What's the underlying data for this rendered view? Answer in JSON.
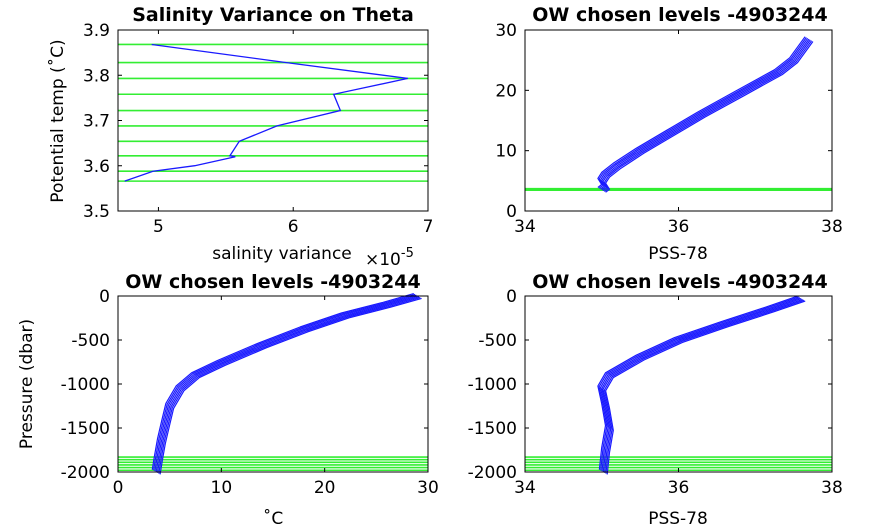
{
  "colors": {
    "profile": "#1a1aff",
    "level": "#33ee33",
    "axis": "#000000"
  },
  "chart_data": [
    {
      "id": "tl",
      "type": "line",
      "title": "Salinity Variance on Theta",
      "xlabel": "salinity variance",
      "ylabel": "Potential temp (˚C)",
      "xlim": [
        4.7,
        7.0
      ],
      "ylim": [
        3.5,
        3.9
      ],
      "xticks": [
        5,
        6,
        7
      ],
      "yticks": [
        3.5,
        3.6,
        3.7,
        3.8,
        3.9
      ],
      "xtick_labels": [
        "5",
        "6",
        "7"
      ],
      "ytick_labels": [
        "3.5",
        "3.6",
        "3.7",
        "3.8",
        "3.9"
      ],
      "x_exponent_label": "×10",
      "x_exponent_power": "-5",
      "series": [
        {
          "x": [
            4.95,
            5.95,
            6.85,
            6.3,
            6.35,
            5.88,
            5.6,
            5.53,
            5.57,
            5.27,
            4.96,
            4.75
          ],
          "y": [
            3.868,
            3.828,
            3.793,
            3.758,
            3.722,
            3.688,
            3.654,
            3.622,
            3.62,
            3.6,
            3.588,
            3.566
          ]
        }
      ],
      "levels": [
        3.868,
        3.828,
        3.793,
        3.758,
        3.722,
        3.688,
        3.654,
        3.622,
        3.588,
        3.566
      ]
    },
    {
      "id": "tr",
      "type": "line",
      "title": "OW chosen levels -4903244",
      "xlabel": "PSS-78",
      "ylabel": "",
      "xlim": [
        34,
        38
      ],
      "ylim": [
        0,
        30
      ],
      "xticks": [
        34,
        36,
        38
      ],
      "yticks": [
        0,
        10,
        20,
        30
      ],
      "xtick_labels": [
        "34",
        "36",
        "38"
      ],
      "ytick_labels": [
        "0",
        "10",
        "20",
        "30"
      ],
      "series": [
        {
          "x": [
            37.7,
            37.5,
            37.3,
            36.8,
            36.3,
            35.9,
            35.5,
            35.2,
            35.05,
            35.0,
            35.05,
            35.0
          ],
          "y": [
            28.5,
            25.0,
            23.0,
            19.5,
            16.0,
            13.0,
            10.0,
            7.5,
            6.0,
            5.0,
            4.0,
            3.5
          ]
        }
      ],
      "levels": [
        3.7,
        3.6,
        3.55,
        3.5,
        3.45
      ]
    },
    {
      "id": "bl",
      "type": "line",
      "title": "OW chosen levels -4903244",
      "xlabel": "˚C",
      "ylabel": "Pressure (dbar)",
      "xlim": [
        0,
        30
      ],
      "ylim": [
        -2000,
        0
      ],
      "xticks": [
        0,
        10,
        20,
        30
      ],
      "yticks": [
        -2000,
        -1500,
        -1000,
        -500,
        0
      ],
      "xtick_labels": [
        "0",
        "10",
        "20",
        "30"
      ],
      "ytick_labels": [
        "-2000",
        "-1500",
        "-1000",
        "-500",
        "0"
      ],
      "series": [
        {
          "x": [
            29,
            26,
            22,
            18,
            14,
            10,
            7.5,
            6,
            5,
            4.6,
            4.2,
            3.9,
            3.7
          ],
          "y": [
            0,
            -100,
            -220,
            -380,
            -560,
            -760,
            -900,
            -1050,
            -1250,
            -1450,
            -1650,
            -1850,
            -2000
          ]
        }
      ],
      "levels": [
        -1830,
        -1860,
        -1890,
        -1920,
        -1950,
        -1980
      ]
    },
    {
      "id": "br",
      "type": "line",
      "title": "OW chosen levels -4903244",
      "xlabel": "PSS-78",
      "ylabel": "",
      "xlim": [
        34,
        38
      ],
      "ylim": [
        -2000,
        0
      ],
      "xticks": [
        34,
        36,
        38
      ],
      "yticks": [
        -2000,
        -1500,
        -1000,
        -500,
        0
      ],
      "xtick_labels": [
        "34",
        "36",
        "38"
      ],
      "ytick_labels": [
        "-2000",
        "-1500",
        "-1000",
        "-500",
        "0"
      ],
      "series": [
        {
          "x": [
            37.6,
            37.2,
            36.6,
            36.0,
            35.5,
            35.1,
            35.0,
            35.05,
            35.1,
            35.05,
            35.02
          ],
          "y": [
            -30,
            -150,
            -320,
            -500,
            -700,
            -900,
            -1050,
            -1250,
            -1500,
            -1750,
            -2000
          ]
        }
      ],
      "levels": [
        -1830,
        -1860,
        -1890,
        -1920,
        -1950,
        -1980
      ]
    }
  ]
}
